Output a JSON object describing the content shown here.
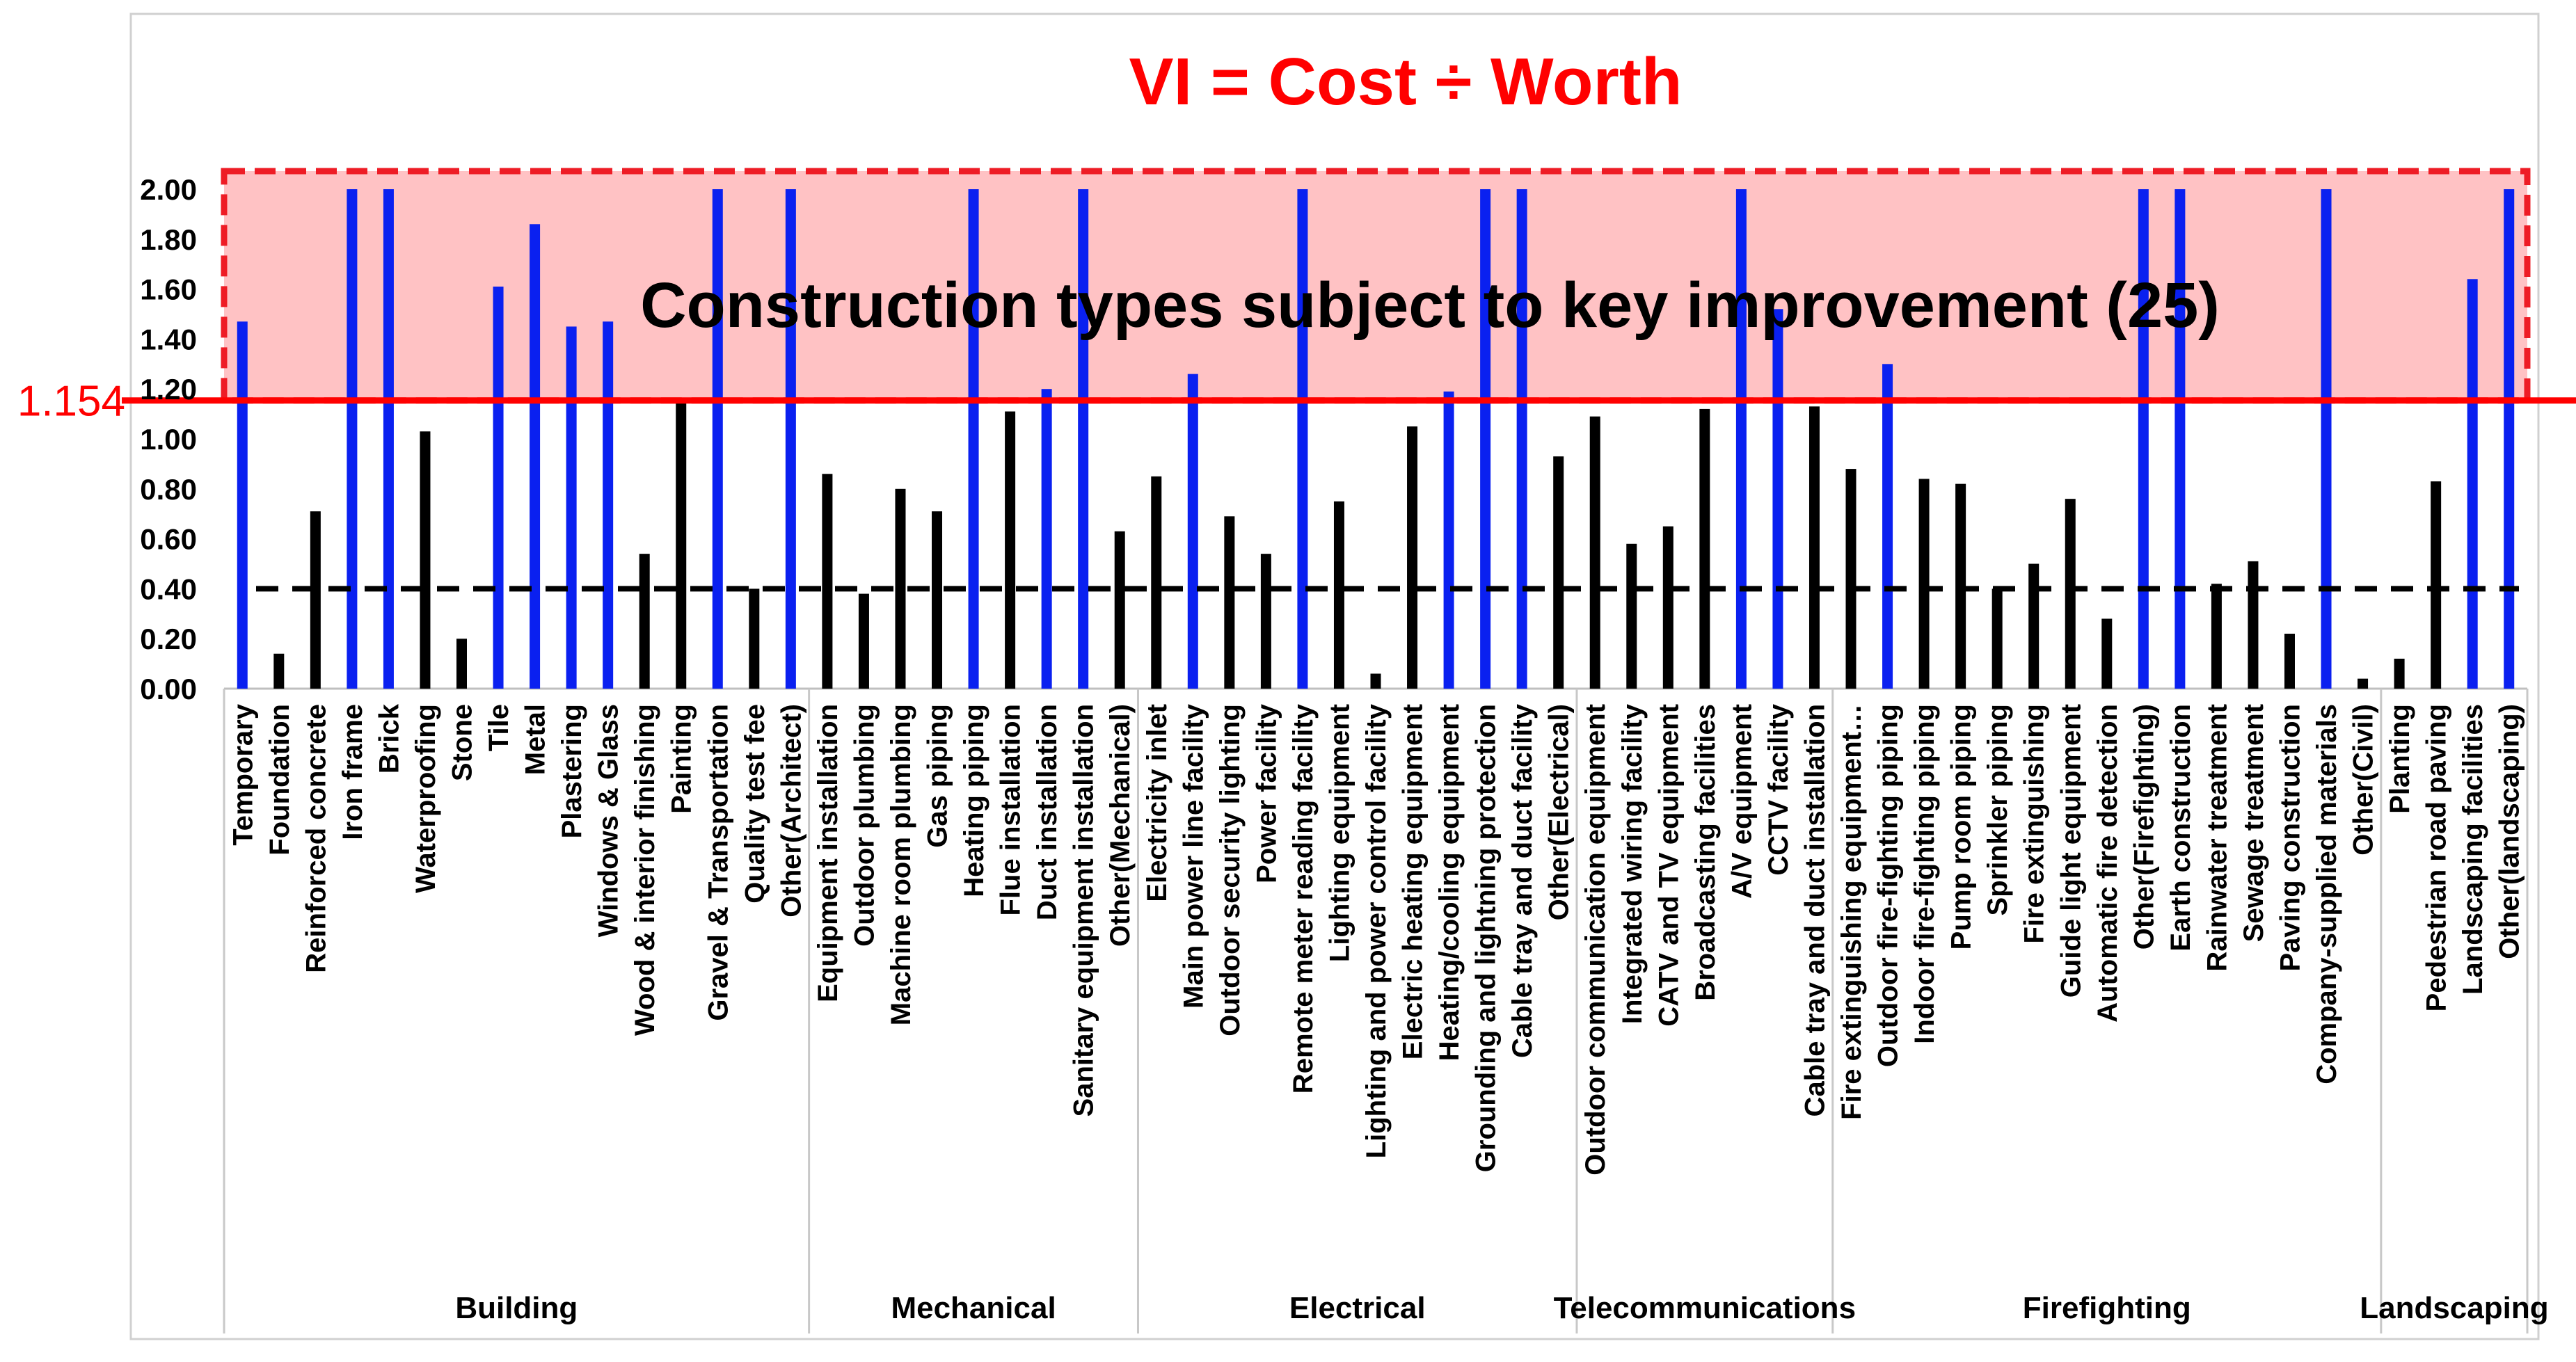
{
  "chart_data": {
    "type": "bar",
    "title": "VI = Cost ÷ Worth",
    "annotation": "Construction types subject to key improvement (25)",
    "threshold": {
      "value": 1.154,
      "label": "1.154"
    },
    "baseline": 0.4,
    "ylim": [
      0,
      2.0
    ],
    "yticks": [
      "0.00",
      "0.20",
      "0.40",
      "0.60",
      "0.80",
      "1.00",
      "1.20",
      "1.40",
      "1.60",
      "1.80",
      "2.00"
    ],
    "xlabel": "",
    "ylabel": "",
    "grid": false,
    "colors": {
      "highlighted": "#0a20f0",
      "normal": "#000000",
      "threshold": "#ff0000",
      "region_fill": "#ffc2c4",
      "region_border": "#ee1c25",
      "baseline": "#000000",
      "title": "#ff0000"
    },
    "groups": [
      {
        "name": "Building",
        "count": 16
      },
      {
        "name": "Mechanical",
        "count": 9
      },
      {
        "name": "Electrical",
        "count": 12
      },
      {
        "name": "Telecommunications",
        "count": 7
      },
      {
        "name": "Firefighting",
        "count": 15
      },
      {
        "name": "Landscaping",
        "count": 4
      }
    ],
    "categories": [
      "Temporary",
      "Foundation",
      "Reinforced concrete",
      "Iron frame",
      "Brick",
      "Waterproofing",
      "Stone",
      "Tile",
      "Metal",
      "Plastering",
      "Windows & Glass",
      "Wood & interior finishing",
      "Painting",
      "Gravel & Transportation",
      "Quality test fee",
      "Other(Architect)",
      "Equipment installation",
      "Outdoor plumbing",
      "Machine room plumbing",
      "Gas piping",
      "Heating piping",
      "Flue installation",
      "Duct installation",
      "Sanitary equipment installation",
      "Other(Mechanical)",
      "Electricity inlet",
      "Main power line facility",
      "Outdoor security lighting",
      "Power facility",
      "Remote meter reading facility",
      "Lighting equipment",
      "Lighting and power control facility",
      "Electric heating equipment",
      "Heating/cooling equipment",
      "Grounding and lightning protection",
      "Cable tray and duct facility",
      "Other(Electrical)",
      "Outdoor communication equipment",
      "Integrated wiring facility",
      "CATV and TV equipment",
      "Broadcasting facilities",
      "A/V equipment",
      "CCTV facility",
      "Cable tray and duct installation",
      "Fire extinguishing equipment…",
      "Outdoor fire-fighting piping",
      "Indoor fire-fighting piping",
      "Pump room piping",
      "Sprinkler piping",
      "Fire extinguishing",
      "Guide light equipment",
      "Automatic fire detection",
      "Other(Firefighting)",
      "Earth construction",
      "Rainwater treatment",
      "Sewage treatment",
      "Paving construction",
      "Company-supplied materials",
      "Other(Civil)",
      "Planting",
      "Pedestrian road paving",
      "Landscaping facilities",
      "Other(landscaping)"
    ],
    "values": [
      1.47,
      0.14,
      0.71,
      2.0,
      2.0,
      1.03,
      0.2,
      1.61,
      1.86,
      1.45,
      1.47,
      0.54,
      1.15,
      2.0,
      0.4,
      2.0,
      0.86,
      0.38,
      0.8,
      0.71,
      2.0,
      1.11,
      1.2,
      2.0,
      0.63,
      0.85,
      1.26,
      0.69,
      0.54,
      2.0,
      0.75,
      0.06,
      1.05,
      1.19,
      2.0,
      2.0,
      0.93,
      1.09,
      0.58,
      0.65,
      1.12,
      2.0,
      1.52,
      1.13,
      0.88,
      1.3,
      0.84,
      0.82,
      0.4,
      0.5,
      0.76,
      0.28,
      2.0,
      2.0,
      0.42,
      0.51,
      0.22,
      2.0,
      0.04,
      0.12,
      0.83,
      1.64,
      2.0
    ]
  }
}
